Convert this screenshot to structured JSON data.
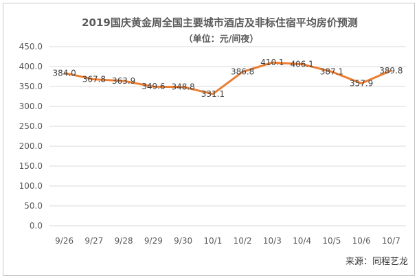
{
  "chart_data": {
    "type": "line",
    "title": "2019国庆黄金周全国主要城市酒店及非标住宿平均房价预测",
    "subtitle": "（单位：元/间夜）",
    "categories": [
      "9/26",
      "9/27",
      "9/28",
      "9/29",
      "9/30",
      "10/1",
      "10/2",
      "10/3",
      "10/4",
      "10/5",
      "10/6",
      "10/7"
    ],
    "values": [
      384.0,
      367.8,
      363.9,
      349.6,
      348.8,
      331.1,
      386.8,
      410.1,
      406.1,
      387.1,
      357.9,
      389.8
    ],
    "value_labels": [
      "384.0",
      "367.8",
      "363.9",
      "349.6",
      "348.8",
      "331.1",
      "386.8",
      "410.1",
      "406.1",
      "387.1",
      "357.9",
      "389.8"
    ],
    "y_ticks": [
      "450.0",
      "400.0",
      "350.0",
      "300.0",
      "250.0",
      "200.0",
      "150.0",
      "100.0",
      "50.0",
      "0.0"
    ],
    "ylim": [
      0,
      450
    ],
    "grid": true,
    "line_color": "#ED7D31",
    "source": "来源：同程艺龙"
  }
}
